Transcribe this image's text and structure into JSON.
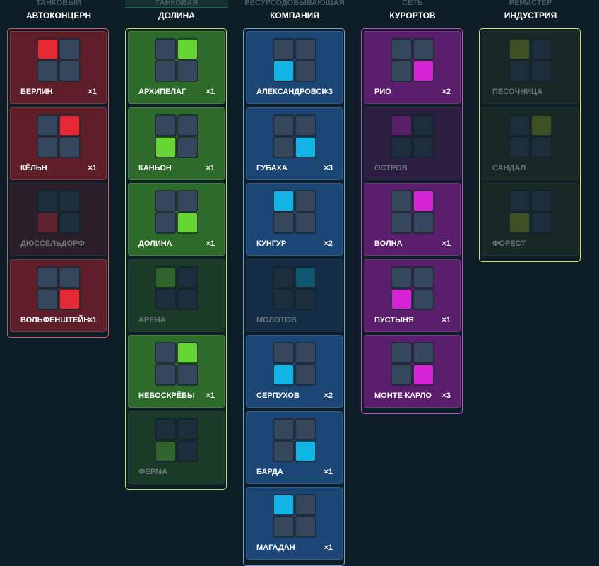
{
  "tabs": [
    "ТАНКОВЫЙ",
    "ТАНКОВАЯ",
    "РЕСУРСОДОБЫВАЮЩАЯ",
    "СЕТЬ",
    "РЕМАСТЕР"
  ],
  "columns": [
    {
      "title": "АВТОКОНЦЕРН",
      "cards": [
        {
          "name": "БЕРЛИН",
          "count": "×1"
        },
        {
          "name": "КЁЛЬН",
          "count": "×1"
        },
        {
          "name": "ДЮССЕЛЬДОРФ"
        },
        {
          "name": "ВОЛЬФЕНШТЕЙН",
          "count": "×1"
        }
      ]
    },
    {
      "title": "ДОЛИНА",
      "cards": [
        {
          "name": "АРХИПЕЛАГ",
          "count": "×1"
        },
        {
          "name": "КАНЬОН",
          "count": "×1"
        },
        {
          "name": "ДОЛИНА",
          "count": "×1"
        },
        {
          "name": "АРЕНА"
        },
        {
          "name": "НЕБОСКРЁБЫ",
          "count": "×1"
        },
        {
          "name": "ФЕРМА"
        }
      ]
    },
    {
      "title": "КОМПАНИЯ",
      "cards": [
        {
          "name": "АЛЕКСАНДРОВСК",
          "count": "×3"
        },
        {
          "name": "ГУБАХА",
          "count": "×3"
        },
        {
          "name": "КУНГУР",
          "count": "×2"
        },
        {
          "name": "МОЛОТОВ"
        },
        {
          "name": "СЕРПУХОВ",
          "count": "×2"
        },
        {
          "name": "БАРДА",
          "count": "×1"
        },
        {
          "name": "МАГАДАН",
          "count": "×1"
        }
      ]
    },
    {
      "title": "КУРОРТОВ",
      "cards": [
        {
          "name": "РИО",
          "count": "×2"
        },
        {
          "name": "ОСТРОВ"
        },
        {
          "name": "ВОЛНА",
          "count": "×1"
        },
        {
          "name": "ПУСТЫНЯ",
          "count": "×1"
        },
        {
          "name": "МОНТЕ-КАРЛО",
          "count": "×3"
        }
      ]
    },
    {
      "title": "ИНДУСТРИЯ",
      "cards": [
        {
          "name": "ПЕСОЧНИЦА"
        },
        {
          "name": "САНДАЛ"
        },
        {
          "name": "ФОРЕСТ"
        }
      ]
    }
  ]
}
